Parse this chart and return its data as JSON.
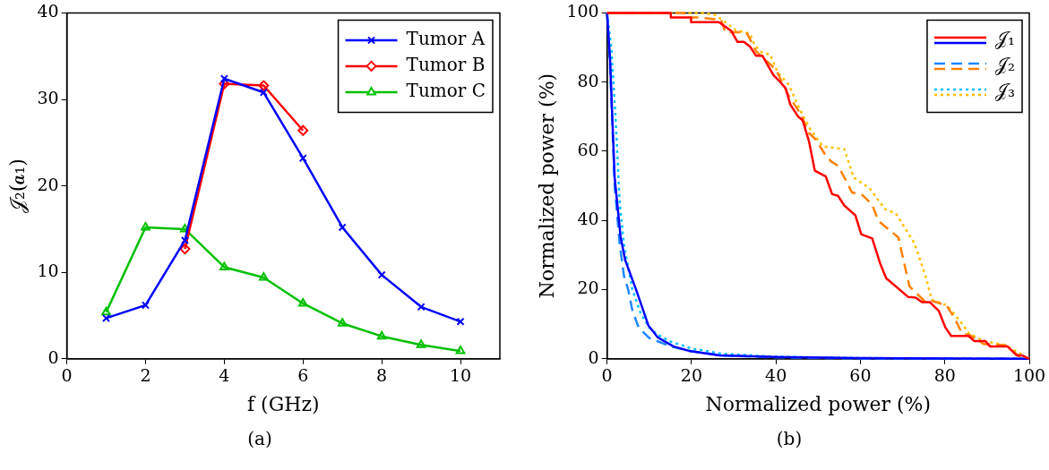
{
  "chart_data": [
    {
      "type": "line",
      "xlabel": "f (GHz)",
      "ylabel": "𝒥₂(𝒂₁)",
      "annotations": [
        "(a)"
      ],
      "x": [
        1,
        2,
        3,
        4,
        5,
        6,
        7,
        8,
        9,
        10
      ],
      "xlim": [
        0,
        11
      ],
      "xticks": [
        0,
        2,
        4,
        6,
        8,
        10
      ],
      "ylim": [
        0,
        40
      ],
      "yticks": [
        0,
        10,
        20,
        30,
        40
      ],
      "grid": false,
      "legend": "top right",
      "series": [
        {
          "name": "Tumor A",
          "color": "#0000ff",
          "marker": "cross",
          "values": [
            4.7,
            6.2,
            13.7,
            32.4,
            30.8,
            23.2,
            15.2,
            9.7,
            6.0,
            4.3
          ]
        },
        {
          "name": "Tumor B",
          "color": "#ff0000",
          "marker": "diamond",
          "x": [
            3,
            4,
            5,
            6
          ],
          "values": [
            12.7,
            31.8,
            31.6,
            26.4
          ]
        },
        {
          "name": "Tumor C",
          "color": "#00c000",
          "marker": "triangle",
          "values": [
            5.4,
            15.2,
            15.0,
            10.6,
            9.4,
            6.4,
            4.1,
            2.6,
            1.6,
            0.9
          ]
        }
      ]
    },
    {
      "type": "line",
      "xlabel": "Normalized power (%)",
      "ylabel": "Normalized power (%)",
      "annotations": [
        "(b)"
      ],
      "xlim": [
        0,
        100
      ],
      "xticks": [
        0,
        20,
        40,
        60,
        80,
        100
      ],
      "ylim": [
        0,
        100
      ],
      "yticks": [
        0,
        20,
        40,
        60,
        80,
        100
      ],
      "grid": false,
      "legend": "top right",
      "series": [
        {
          "name": "𝒥₁",
          "color": "#ff0000",
          "line_style": "solid",
          "x": [
            0,
            15.1,
            15.1,
            19.9,
            19.9,
            26.5,
            29.4,
            30.9,
            32.4,
            33.9,
            35.3,
            36.8,
            39.4,
            40.8,
            42.3,
            43.4,
            45.2,
            46.3,
            47.8,
            49.2,
            51.8,
            53.3,
            54.7,
            56.2,
            58.8,
            60.2,
            62.8,
            64.7,
            66.1,
            71.3,
            73.1,
            74.6,
            76.4,
            78.6,
            80.1,
            81.5,
            85.6,
            87,
            89.6,
            90.7,
            94.8,
            97,
            98.2,
            100
          ],
          "values": [
            100,
            100,
            98.7,
            98.7,
            97.3,
            97.3,
            94.8,
            91.6,
            91.6,
            90.2,
            87.6,
            87.6,
            82,
            80.3,
            78.2,
            73.5,
            70.1,
            69,
            63,
            54.4,
            52.7,
            47.6,
            47.1,
            44.3,
            41.5,
            36,
            34.8,
            27.5,
            23.3,
            17.9,
            17.7,
            16.4,
            16.4,
            13.8,
            9.1,
            6.6,
            6.6,
            5.1,
            5.1,
            3.6,
            3.6,
            1,
            1,
            0
          ]
        },
        {
          "color": "#0000ff",
          "line_style": "solid",
          "x": [
            0,
            0.7,
            1.8,
            3.2,
            4.3,
            6.9,
            9.8,
            12,
            15.7,
            19.4,
            26.7,
            40,
            60,
            100
          ],
          "values": [
            100,
            86.7,
            52.4,
            35.3,
            28.5,
            19.9,
            9.6,
            6.2,
            3.6,
            2.3,
            1,
            0.5,
            0.2,
            0
          ]
        },
        {
          "name": "𝒥₂",
          "color": "#1e88ff",
          "line_style": "dashed",
          "x": [
            0,
            0.7,
            1.8,
            3,
            4,
            5,
            6,
            7.5,
            10,
            15,
            20,
            27,
            40,
            60,
            100
          ],
          "values": [
            100,
            85,
            50,
            33,
            24,
            20,
            14,
            9,
            6,
            3.6,
            2.2,
            1,
            0.4,
            0.1,
            0
          ]
        },
        {
          "color": "#ff8000",
          "line_style": "dashed",
          "x": [
            0,
            18.3,
            18.3,
            21.6,
            27,
            28,
            33,
            35.3,
            40,
            42.9,
            46,
            47.8,
            49.6,
            51.5,
            53,
            54.7,
            56.6,
            58,
            60.2,
            62.8,
            64.2,
            66.8,
            69,
            70.1,
            71.6,
            72.3,
            75.2,
            77.1,
            80.4,
            82.2,
            84.1,
            85.9,
            89.2,
            94.4,
            97.4,
            100
          ],
          "values": [
            100,
            100,
            98.7,
            98.7,
            98,
            94.4,
            94.4,
            88.9,
            83.6,
            76.3,
            70.5,
            65.3,
            63.2,
            59.3,
            57.1,
            55.8,
            51.5,
            48.1,
            47.6,
            44.6,
            39.9,
            37.3,
            35.1,
            29.1,
            21,
            20.1,
            16.7,
            16.7,
            15.4,
            12,
            7.3,
            6.9,
            4.3,
            3.9,
            0.9,
            0
          ]
        },
        {
          "name": "𝒥₃",
          "color": "#00c0ff",
          "line_style": "dotted",
          "x": [
            0,
            1,
            2,
            3,
            4,
            6,
            8,
            10,
            12,
            15,
            20,
            27,
            40,
            60,
            100
          ],
          "values": [
            100,
            90,
            70,
            45,
            33,
            20,
            13,
            9,
            7,
            5,
            3,
            1.5,
            0.6,
            0.2,
            0
          ]
        },
        {
          "color": "#ffc000",
          "line_style": "dotted",
          "x": [
            0,
            22.4,
            25.4,
            27.6,
            30.5,
            33.8,
            35,
            36.8,
            38.6,
            40.4,
            43,
            45.6,
            48.2,
            51.1,
            56.2,
            58.4,
            62.1,
            65.8,
            68.4,
            72.8,
            75.4,
            76.9,
            80.6,
            84.3,
            85.7,
            89.4,
            94.5,
            100
          ],
          "values": [
            100,
            100,
            99.5,
            97.7,
            95,
            94,
            90.6,
            88.4,
            88,
            82.8,
            79.3,
            72.2,
            66.2,
            61.4,
            60.6,
            52.4,
            49.4,
            43.3,
            42,
            33.4,
            24,
            17.1,
            15.4,
            9.8,
            7.3,
            5.1,
            3.9,
            0
          ]
        }
      ]
    }
  ]
}
